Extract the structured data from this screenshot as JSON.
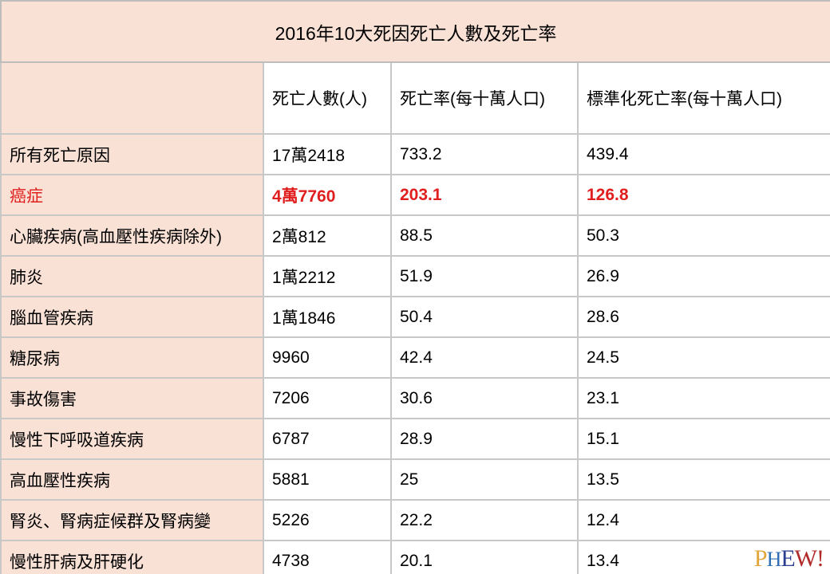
{
  "table": {
    "title": "2016年10大死因死亡人數及死亡率",
    "headers": [
      "",
      "死亡人數(人)",
      "死亡率(每十萬人口)",
      "標準化死亡率(每十萬人口)"
    ],
    "rows": [
      {
        "cause": "所有死亡原因",
        "deaths": "17萬2418",
        "rate": "733.2",
        "std_rate": "439.4",
        "highlight": false
      },
      {
        "cause": "癌症",
        "deaths": "4萬7760",
        "rate": "203.1",
        "std_rate": "126.8",
        "highlight": true
      },
      {
        "cause": "心臟疾病(高血壓性疾病除外)",
        "deaths": "2萬812",
        "rate": "88.5",
        "std_rate": "50.3",
        "highlight": false
      },
      {
        "cause": "肺炎",
        "deaths": "1萬2212",
        "rate": "51.9",
        "std_rate": "26.9",
        "highlight": false
      },
      {
        "cause": "腦血管疾病",
        "deaths": "1萬1846",
        "rate": "50.4",
        "std_rate": "28.6",
        "highlight": false
      },
      {
        "cause": "糖尿病",
        "deaths": "9960",
        "rate": "42.4",
        "std_rate": "24.5",
        "highlight": false
      },
      {
        "cause": "事故傷害",
        "deaths": "7206",
        "rate": "30.6",
        "std_rate": "23.1",
        "highlight": false
      },
      {
        "cause": "慢性下呼吸道疾病",
        "deaths": "6787",
        "rate": "28.9",
        "std_rate": "15.1",
        "highlight": false
      },
      {
        "cause": "高血壓性疾病",
        "deaths": "5881",
        "rate": "25",
        "std_rate": "13.5",
        "highlight": false
      },
      {
        "cause": "腎炎、腎病症候群及腎病變",
        "deaths": "5226",
        "rate": "22.2",
        "std_rate": "12.4",
        "highlight": false
      },
      {
        "cause": "慢性肝病及肝硬化",
        "deaths": "4738",
        "rate": "20.1",
        "std_rate": "13.4",
        "highlight": false
      }
    ]
  },
  "watermark": {
    "text": "PHEW!",
    "letters": [
      "P",
      "H",
      "E",
      "W",
      "!"
    ]
  },
  "colors": {
    "label_bg": "#f9e1d5",
    "highlight_text": "#e01e1e",
    "border": "#c8c8c8"
  }
}
